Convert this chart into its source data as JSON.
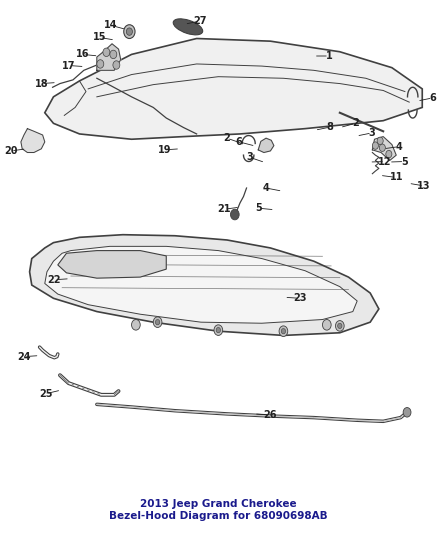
{
  "title": "2013 Jeep Grand Cherokee\nBezel-Hood Diagram for 68090698AB",
  "bg_color": "#ffffff",
  "line_color": "#404040",
  "label_color": "#222222",
  "title_color": "#1a1a8c",
  "title_fontsize": 7.5,
  "label_fontsize": 7,
  "fig_width": 4.38,
  "fig_height": 5.33,
  "dpi": 100
}
